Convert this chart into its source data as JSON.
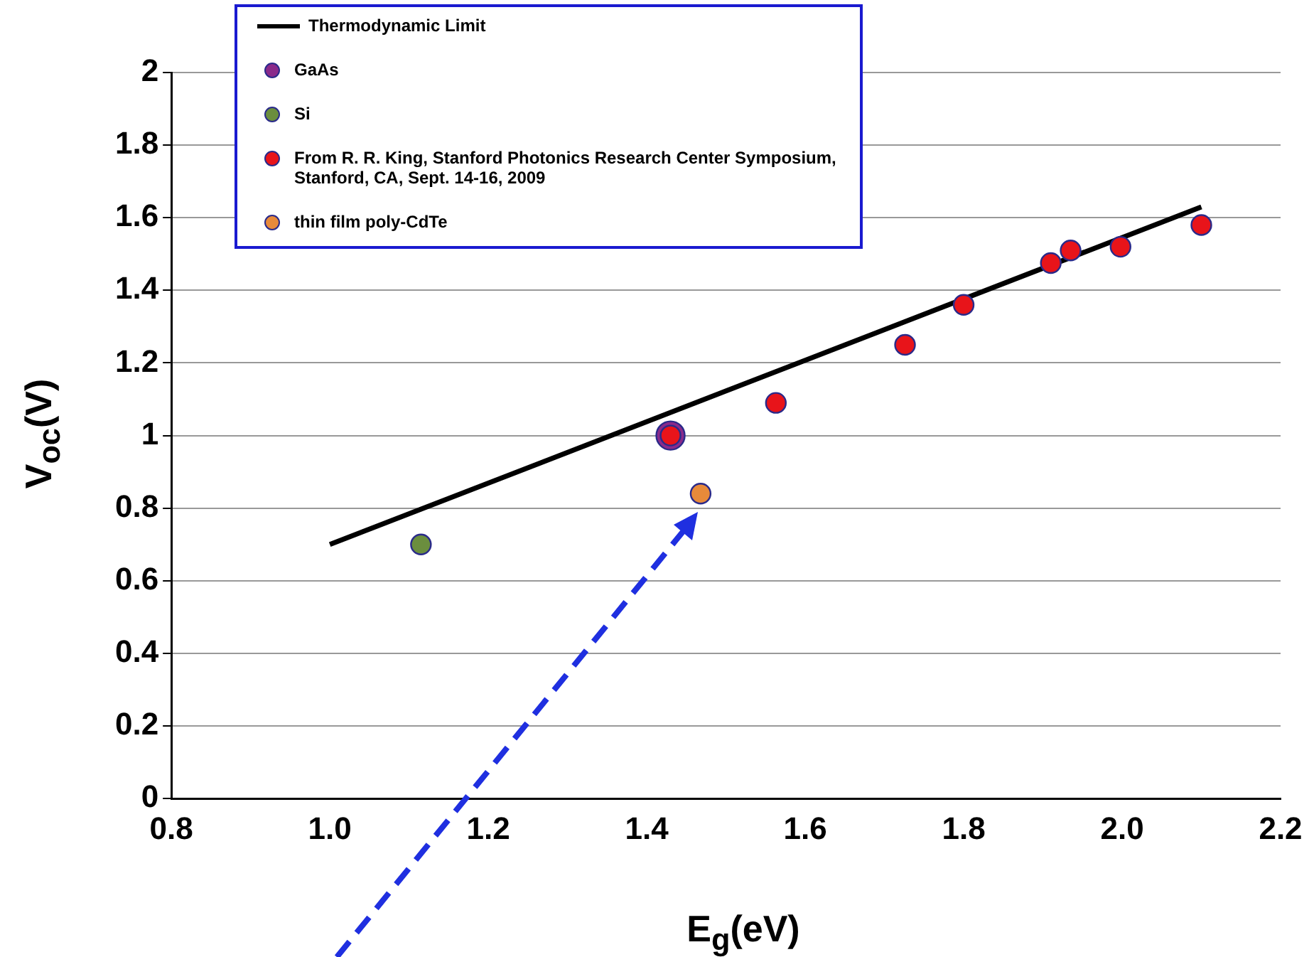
{
  "chart_data": {
    "type": "scatter",
    "xlabel": "E$_{g}$(eV)",
    "ylabel": "V$_{oc}$(V)",
    "xlim": [
      0.8,
      2.2
    ],
    "xticks": [
      0.8,
      {
        "value": 1,
        "label": "1.0"
      },
      1.2,
      1.4,
      1.6,
      1.8,
      {
        "value": 2,
        "label": "2.0"
      },
      2.2
    ],
    "ylim": [
      0,
      2
    ],
    "yticks": [
      0,
      0.2,
      0.4,
      0.6,
      0.8,
      1,
      1.2,
      1.4,
      1.6,
      1.8,
      2
    ],
    "grid": "y",
    "legend": "top left",
    "marker": "circle",
    "series": [
      {
        "name": "Thermodynamic Limit",
        "type": "line",
        "marker": "none",
        "color": "#000000",
        "x": [
          1.0,
          2.1
        ],
        "values": [
          0.7,
          1.63
        ]
      },
      {
        "name": "GaAs",
        "color": "#8a2a8a",
        "x": [
          1.43
        ],
        "values": [
          1.0
        ]
      },
      {
        "name": "Si",
        "color": "#6b8e3e",
        "x": [
          1.115
        ],
        "values": [
          0.7
        ]
      },
      {
        "name": "From R. R. King, Stanford Photonics Research Center Symposium, Stanford, CA, Sept. 14-16, 2009",
        "color": "#e8141a",
        "x": [
          1.43,
          1.563,
          1.726,
          1.8,
          1.91,
          1.935,
          1.998,
          2.1
        ],
        "values": [
          1.0,
          1.09,
          1.25,
          1.36,
          1.475,
          1.51,
          1.52,
          1.58
        ]
      },
      {
        "name": "thin film poly-CdTe",
        "color": "#e88a3a",
        "x": [
          1.468
        ],
        "values": [
          0.84
        ]
      }
    ]
  }
}
